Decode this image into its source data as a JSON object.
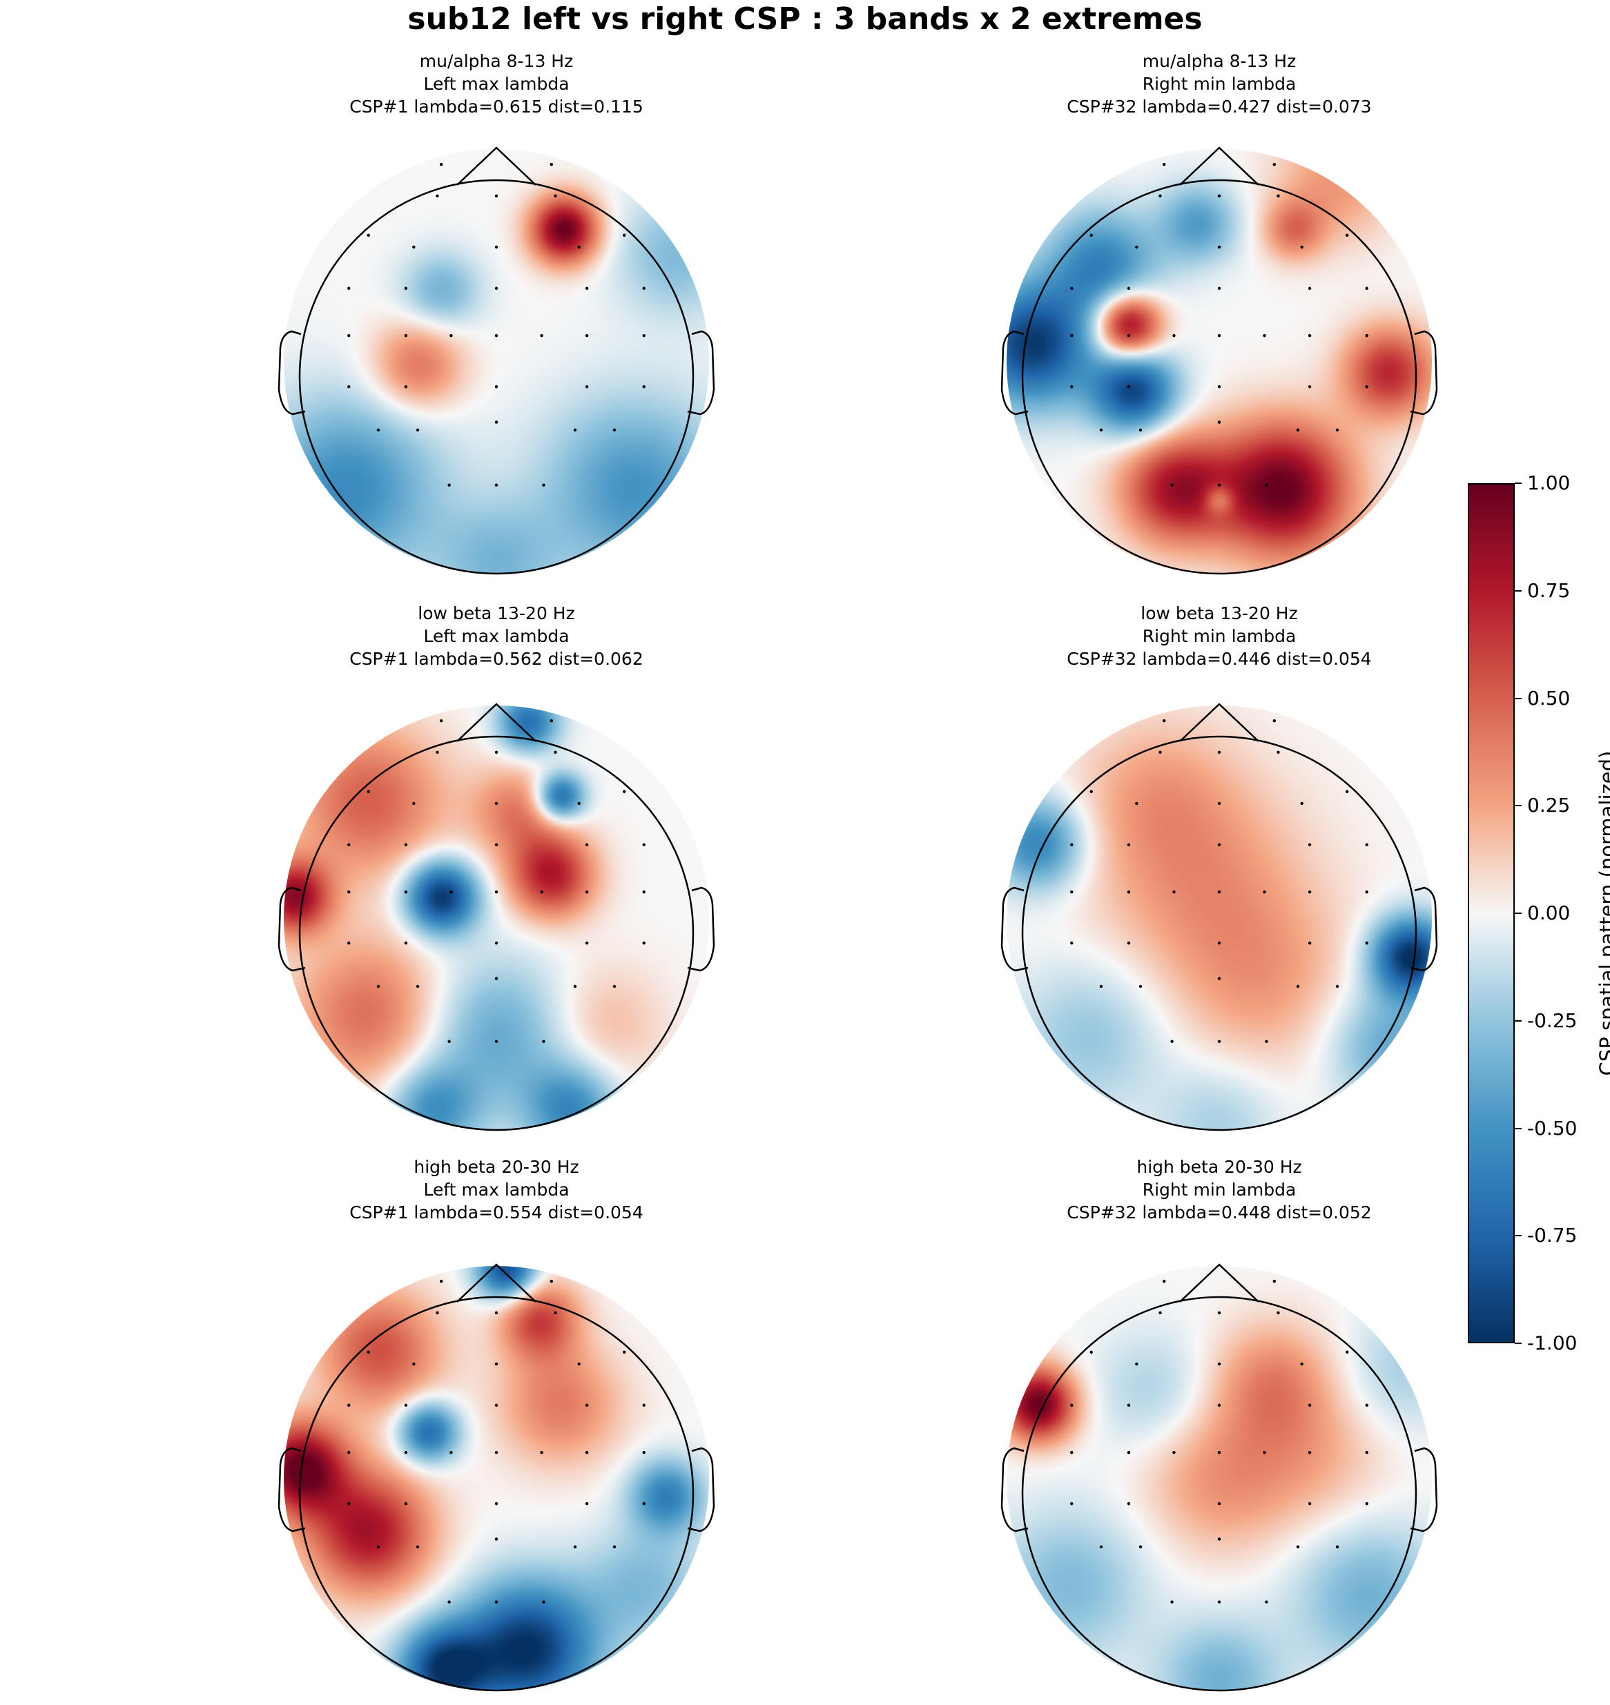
{
  "figure": {
    "title": "sub12 left vs right CSP : 3 bands x 2 extremes"
  },
  "chart_data": {
    "type": "heatmap",
    "title": "sub12 left vs right CSP : 3 bands x 2 extremes",
    "colormap": "RdBu_r",
    "panels": [
      {
        "title_lines": [
          "mu/alpha 8-13 Hz",
          "Left max lambda",
          "CSP#1  lambda=0.615  dist=0.115"
        ],
        "band": "mu/alpha 8-13 Hz",
        "class": "Left max lambda",
        "component": "CSP#1",
        "lambda": 0.615,
        "dist": 0.115,
        "blobs": [
          {
            "x": 0.32,
            "y": 0.62,
            "value": 1.0,
            "spread": 0.11
          },
          {
            "x": -0.37,
            "y": -0.02,
            "value": 0.45,
            "spread": 0.15
          },
          {
            "x": -0.26,
            "y": 0.33,
            "value": -0.35,
            "spread": 0.13
          },
          {
            "x": -0.7,
            "y": -0.6,
            "value": -0.55,
            "spread": 0.3
          },
          {
            "x": 0.65,
            "y": -0.6,
            "value": -0.5,
            "spread": 0.3
          },
          {
            "x": 0.0,
            "y": -0.95,
            "value": -0.3,
            "spread": 0.2
          },
          {
            "x": 0.85,
            "y": 0.5,
            "value": -0.3,
            "spread": 0.2
          }
        ]
      },
      {
        "title_lines": [
          "mu/alpha 8-13 Hz",
          "Right min lambda",
          "CSP#32  lambda=0.427  dist=0.073"
        ],
        "band": "mu/alpha 8-13 Hz",
        "class": "Right min lambda",
        "component": "CSP#32",
        "lambda": 0.427,
        "dist": 0.073,
        "blobs": [
          {
            "x": -0.43,
            "y": 0.17,
            "value": 1.0,
            "spread": 0.11
          },
          {
            "x": -0.88,
            "y": 0.08,
            "value": -0.95,
            "spread": 0.2
          },
          {
            "x": -0.4,
            "y": -0.14,
            "value": -0.9,
            "spread": 0.14
          },
          {
            "x": -0.55,
            "y": 0.45,
            "value": -0.6,
            "spread": 0.18
          },
          {
            "x": -0.1,
            "y": 0.65,
            "value": -0.45,
            "spread": 0.13
          },
          {
            "x": 0.3,
            "y": -0.6,
            "value": 1.0,
            "spread": 0.22
          },
          {
            "x": -0.2,
            "y": -0.6,
            "value": 0.8,
            "spread": 0.18
          },
          {
            "x": 0.8,
            "y": -0.05,
            "value": 0.7,
            "spread": 0.15
          },
          {
            "x": 0.35,
            "y": 0.62,
            "value": 0.4,
            "spread": 0.1
          },
          {
            "x": 0.55,
            "y": 0.85,
            "value": 0.3,
            "spread": 0.2
          },
          {
            "x": 0.0,
            "y": -0.65,
            "value": -0.4,
            "spread": 0.05
          }
        ]
      },
      {
        "title_lines": [
          "low beta 13-20 Hz",
          "Left max lambda",
          "CSP#1  lambda=0.562  dist=0.062"
        ],
        "band": "low beta 13-20 Hz",
        "class": "Left max lambda",
        "component": "CSP#1",
        "lambda": 0.562,
        "dist": 0.062,
        "blobs": [
          {
            "x": -0.26,
            "y": 0.1,
            "value": -1.0,
            "spread": 0.12
          },
          {
            "x": 0.3,
            "y": 0.57,
            "value": -0.8,
            "spread": 0.08
          },
          {
            "x": 0.15,
            "y": 0.92,
            "value": -0.7,
            "spread": 0.1
          },
          {
            "x": 0.26,
            "y": 0.2,
            "value": 0.75,
            "spread": 0.14
          },
          {
            "x": -0.95,
            "y": 0.1,
            "value": 0.85,
            "spread": 0.12
          },
          {
            "x": -0.6,
            "y": 0.55,
            "value": 0.5,
            "spread": 0.25
          },
          {
            "x": -0.6,
            "y": -0.45,
            "value": 0.45,
            "spread": 0.25
          },
          {
            "x": 0.5,
            "y": -0.5,
            "value": 0.2,
            "spread": 0.2
          },
          {
            "x": 0.1,
            "y": 0.5,
            "value": 0.4,
            "spread": 0.15
          },
          {
            "x": 0.0,
            "y": -0.55,
            "value": -0.4,
            "spread": 0.25
          },
          {
            "x": 0.35,
            "y": -0.9,
            "value": -0.55,
            "spread": 0.15
          },
          {
            "x": -0.3,
            "y": -0.9,
            "value": -0.5,
            "spread": 0.15
          }
        ]
      },
      {
        "title_lines": [
          "low beta 13-20 Hz",
          "Right min lambda",
          "CSP#32  lambda=0.446  dist=0.054"
        ],
        "band": "low beta 13-20 Hz",
        "class": "Right min lambda",
        "component": "CSP#32",
        "lambda": 0.446,
        "dist": 0.054,
        "blobs": [
          {
            "x": 0.9,
            "y": -0.18,
            "value": -1.0,
            "spread": 0.13
          },
          {
            "x": -0.85,
            "y": 0.35,
            "value": -0.6,
            "spread": 0.15
          },
          {
            "x": 0.8,
            "y": -0.6,
            "value": -0.4,
            "spread": 0.2
          },
          {
            "x": -0.6,
            "y": -0.55,
            "value": -0.25,
            "spread": 0.25
          },
          {
            "x": -0.1,
            "y": 0.2,
            "value": 0.3,
            "spread": 0.35
          },
          {
            "x": 0.2,
            "y": -0.3,
            "value": 0.25,
            "spread": 0.3
          },
          {
            "x": -0.3,
            "y": 0.6,
            "value": 0.2,
            "spread": 0.25
          },
          {
            "x": 0.0,
            "y": -0.95,
            "value": -0.2,
            "spread": 0.2
          }
        ]
      },
      {
        "title_lines": [
          "high beta 20-30 Hz",
          "Left max lambda",
          "CSP#1  lambda=0.554  dist=0.054"
        ],
        "band": "high beta 20-30 Hz",
        "class": "Left max lambda",
        "component": "CSP#1",
        "lambda": 0.554,
        "dist": 0.054,
        "blobs": [
          {
            "x": -0.92,
            "y": 0.05,
            "value": 1.0,
            "spread": 0.15
          },
          {
            "x": -0.6,
            "y": -0.25,
            "value": 0.8,
            "spread": 0.2
          },
          {
            "x": -0.55,
            "y": 0.6,
            "value": 0.55,
            "spread": 0.2
          },
          {
            "x": 0.2,
            "y": 0.75,
            "value": 0.6,
            "spread": 0.13
          },
          {
            "x": 0.3,
            "y": 0.35,
            "value": 0.4,
            "spread": 0.2
          },
          {
            "x": -0.32,
            "y": 0.22,
            "value": -0.75,
            "spread": 0.1
          },
          {
            "x": 0.05,
            "y": 0.98,
            "value": -0.9,
            "spread": 0.1
          },
          {
            "x": 0.15,
            "y": -0.8,
            "value": -1.0,
            "spread": 0.22
          },
          {
            "x": -0.25,
            "y": -0.9,
            "value": -0.9,
            "spread": 0.15
          },
          {
            "x": 0.8,
            "y": -0.08,
            "value": -0.6,
            "spread": 0.12
          },
          {
            "x": 0.7,
            "y": -0.5,
            "value": -0.3,
            "spread": 0.2
          }
        ]
      },
      {
        "title_lines": [
          "high beta 20-30 Hz",
          "Right min lambda",
          "CSP#32  lambda=0.448  dist=0.052"
        ],
        "band": "high beta 20-30 Hz",
        "class": "Right min lambda",
        "component": "CSP#32",
        "lambda": 0.448,
        "dist": 0.052,
        "blobs": [
          {
            "x": -0.85,
            "y": 0.35,
            "value": 1.0,
            "spread": 0.12
          },
          {
            "x": 0.25,
            "y": 0.45,
            "value": 0.35,
            "spread": 0.2
          },
          {
            "x": 0.0,
            "y": 0.0,
            "value": 0.3,
            "spread": 0.25
          },
          {
            "x": 0.45,
            "y": 0.1,
            "value": 0.2,
            "spread": 0.25
          },
          {
            "x": -0.3,
            "y": 0.4,
            "value": -0.2,
            "spread": 0.2
          },
          {
            "x": -0.7,
            "y": -0.5,
            "value": -0.3,
            "spread": 0.25
          },
          {
            "x": 0.7,
            "y": -0.55,
            "value": -0.35,
            "spread": 0.25
          },
          {
            "x": 0.0,
            "y": -0.95,
            "value": -0.35,
            "spread": 0.2
          },
          {
            "x": 0.85,
            "y": 0.5,
            "value": -0.2,
            "spread": 0.2
          }
        ]
      }
    ],
    "electrodes": [
      [
        -0.28,
        1.08
      ],
      [
        0.28,
        1.08
      ],
      [
        -0.3,
        0.92
      ],
      [
        0.0,
        0.92
      ],
      [
        0.3,
        0.92
      ],
      [
        -0.65,
        0.72
      ],
      [
        -0.42,
        0.66
      ],
      [
        0.0,
        0.66
      ],
      [
        0.42,
        0.66
      ],
      [
        0.65,
        0.72
      ],
      [
        -0.75,
        0.45
      ],
      [
        -0.46,
        0.45
      ],
      [
        0.0,
        0.45
      ],
      [
        0.46,
        0.45
      ],
      [
        0.75,
        0.45
      ],
      [
        -0.75,
        0.21
      ],
      [
        -0.46,
        0.21
      ],
      [
        -0.23,
        0.21
      ],
      [
        0.0,
        0.21
      ],
      [
        0.23,
        0.21
      ],
      [
        0.46,
        0.21
      ],
      [
        0.75,
        0.21
      ],
      [
        -0.75,
        -0.05
      ],
      [
        -0.46,
        -0.05
      ],
      [
        0.0,
        -0.05
      ],
      [
        0.46,
        -0.05
      ],
      [
        0.75,
        -0.05
      ],
      [
        -0.6,
        -0.27
      ],
      [
        -0.4,
        -0.27
      ],
      [
        0.0,
        -0.23
      ],
      [
        0.4,
        -0.27
      ],
      [
        0.6,
        -0.27
      ],
      [
        -0.24,
        -0.55
      ],
      [
        0.0,
        -0.55
      ],
      [
        0.24,
        -0.55
      ]
    ],
    "colorbar": {
      "label": "CSP spatial pattern (normalized)",
      "ticks": [
        "1.00",
        "0.75",
        "0.50",
        "0.25",
        "0.00",
        "-0.25",
        "-0.50",
        "-0.75",
        "-1.00"
      ],
      "range": [
        -1.0,
        1.0
      ]
    }
  }
}
